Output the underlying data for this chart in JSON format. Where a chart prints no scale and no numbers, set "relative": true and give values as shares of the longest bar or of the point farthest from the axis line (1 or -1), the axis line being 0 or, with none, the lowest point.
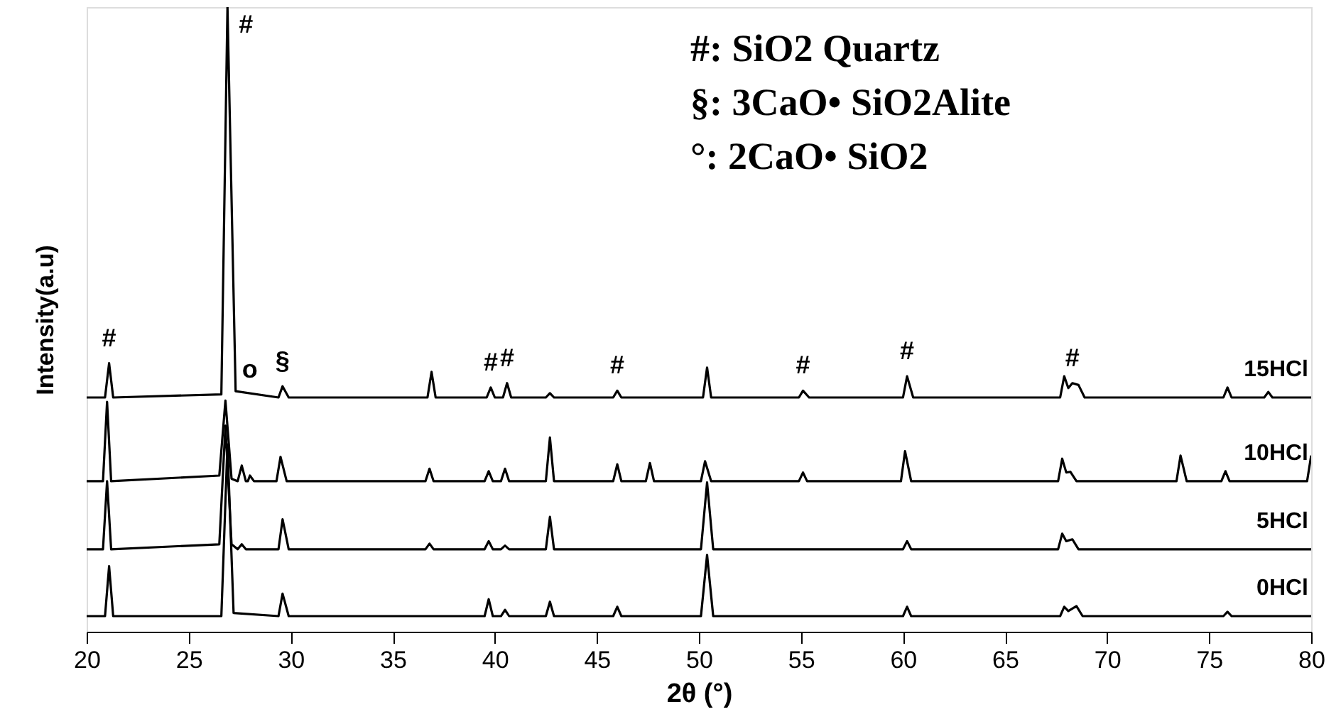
{
  "chart_data": {
    "type": "line",
    "relative": true,
    "xlabel": "2θ (°)",
    "ylabel": "Intensity(a.u)",
    "xlim": [
      20,
      80
    ],
    "xticks": [
      20,
      25,
      30,
      35,
      40,
      45,
      50,
      55,
      60,
      65,
      70,
      75,
      80
    ],
    "tick_labels": "x",
    "grid": false,
    "marker": "none",
    "line_style": "solid",
    "series": [
      {
        "name": "15HCl",
        "color": "#000000",
        "x": [
          20,
          20.9,
          21.1,
          21.3,
          26.6,
          26.9,
          27.3,
          29.4,
          29.6,
          29.9,
          36.7,
          36.9,
          37.1,
          39.6,
          39.8,
          40.0,
          40.4,
          40.6,
          40.8,
          42.5,
          42.7,
          42.9,
          45.8,
          46.0,
          46.2,
          50.2,
          50.4,
          50.6,
          54.9,
          55.1,
          55.4,
          60.0,
          60.2,
          60.5,
          67.7,
          67.9,
          68.1,
          68.3,
          68.6,
          68.9,
          75.7,
          75.9,
          76.1,
          77.7,
          77.9,
          78.1,
          80
        ],
        "values": [
          0.375,
          0.375,
          0.43,
          0.375,
          0.38,
          1.0,
          0.385,
          0.375,
          0.393,
          0.375,
          0.375,
          0.416,
          0.375,
          0.375,
          0.391,
          0.375,
          0.375,
          0.398,
          0.375,
          0.375,
          0.382,
          0.375,
          0.375,
          0.386,
          0.375,
          0.375,
          0.423,
          0.375,
          0.375,
          0.386,
          0.375,
          0.375,
          0.409,
          0.375,
          0.375,
          0.409,
          0.39,
          0.398,
          0.395,
          0.375,
          0.375,
          0.391,
          0.375,
          0.375,
          0.384,
          0.375,
          0.375
        ]
      },
      {
        "name": "10HCl",
        "color": "#000000",
        "x": [
          20,
          20.8,
          21.0,
          21.2,
          26.5,
          26.8,
          27.1,
          27.4,
          27.6,
          27.8,
          27.9,
          28.0,
          28.2,
          29.3,
          29.5,
          29.8,
          36.6,
          36.8,
          37.0,
          39.5,
          39.7,
          39.9,
          40.3,
          40.5,
          40.7,
          42.5,
          42.7,
          42.9,
          45.8,
          46.0,
          46.2,
          47.4,
          47.6,
          47.8,
          50.1,
          50.3,
          50.6,
          54.9,
          55.1,
          55.3,
          59.9,
          60.1,
          60.4,
          67.6,
          67.8,
          68.0,
          68.2,
          68.5,
          73.4,
          73.6,
          73.9,
          75.6,
          75.8,
          76.0,
          79.8,
          80
        ],
        "values": [
          0.241,
          0.241,
          0.368,
          0.241,
          0.25,
          0.37,
          0.245,
          0.241,
          0.266,
          0.241,
          0.241,
          0.25,
          0.241,
          0.241,
          0.28,
          0.241,
          0.241,
          0.261,
          0.241,
          0.241,
          0.257,
          0.241,
          0.241,
          0.261,
          0.241,
          0.241,
          0.311,
          0.241,
          0.241,
          0.268,
          0.241,
          0.241,
          0.27,
          0.241,
          0.241,
          0.273,
          0.241,
          0.241,
          0.255,
          0.241,
          0.241,
          0.289,
          0.241,
          0.241,
          0.277,
          0.255,
          0.256,
          0.241,
          0.241,
          0.282,
          0.241,
          0.241,
          0.257,
          0.241,
          0.241,
          0.282
        ]
      },
      {
        "name": "5HCl",
        "color": "#000000",
        "x": [
          20,
          20.8,
          21.0,
          21.2,
          26.5,
          26.8,
          27.1,
          27.4,
          27.6,
          27.8,
          29.4,
          29.6,
          29.9,
          36.6,
          36.8,
          37.0,
          39.5,
          39.7,
          39.9,
          40.3,
          40.5,
          40.7,
          42.5,
          42.7,
          42.9,
          50.1,
          50.4,
          50.7,
          60.0,
          60.2,
          60.4,
          67.6,
          67.8,
          68.0,
          68.3,
          68.6,
          80
        ],
        "values": [
          0.132,
          0.132,
          0.241,
          0.132,
          0.14,
          0.33,
          0.14,
          0.132,
          0.14,
          0.132,
          0.132,
          0.18,
          0.132,
          0.132,
          0.141,
          0.132,
          0.132,
          0.145,
          0.132,
          0.132,
          0.138,
          0.132,
          0.132,
          0.184,
          0.132,
          0.132,
          0.239,
          0.132,
          0.132,
          0.145,
          0.132,
          0.132,
          0.157,
          0.145,
          0.148,
          0.132,
          0.132
        ]
      },
      {
        "name": "0HCl",
        "color": "#000000",
        "x": [
          20,
          20.9,
          21.1,
          21.3,
          26.6,
          26.9,
          27.2,
          29.4,
          29.6,
          29.9,
          39.5,
          39.7,
          39.9,
          40.3,
          40.5,
          40.7,
          42.5,
          42.7,
          42.9,
          45.8,
          46.0,
          46.2,
          50.1,
          50.4,
          50.7,
          60.0,
          60.2,
          60.4,
          67.7,
          67.9,
          68.1,
          68.5,
          68.8,
          75.7,
          75.9,
          76.1,
          80
        ],
        "values": [
          0.025,
          0.025,
          0.105,
          0.025,
          0.025,
          0.3,
          0.03,
          0.025,
          0.061,
          0.025,
          0.025,
          0.052,
          0.025,
          0.025,
          0.035,
          0.025,
          0.025,
          0.048,
          0.025,
          0.025,
          0.04,
          0.025,
          0.025,
          0.123,
          0.025,
          0.025,
          0.04,
          0.025,
          0.025,
          0.04,
          0.033,
          0.041,
          0.025,
          0.025,
          0.032,
          0.025,
          0.025
        ]
      }
    ],
    "annotations": [
      "#: SiO2 Quartz",
      "§: 3CaO• SiO2Alite",
      "°: 2CaO• SiO2",
      {
        "text": "#",
        "x": 21.1,
        "y": 0.43
      },
      {
        "text": "#",
        "x": 26.9,
        "y": 1.0
      },
      {
        "text": "o",
        "x": 28.0,
        "y": 0.38
      },
      {
        "text": "§",
        "x": 29.6,
        "y": 0.393
      },
      {
        "text": "#",
        "x": 39.8,
        "y": 0.391
      },
      {
        "text": "#",
        "x": 40.6,
        "y": 0.398
      },
      {
        "text": "#",
        "x": 46.0,
        "y": 0.386
      },
      {
        "text": "#",
        "x": 55.1,
        "y": 0.386
      },
      {
        "text": "#",
        "x": 60.2,
        "y": 0.409
      },
      {
        "text": "#",
        "x": 68.3,
        "y": 0.398
      }
    ]
  }
}
